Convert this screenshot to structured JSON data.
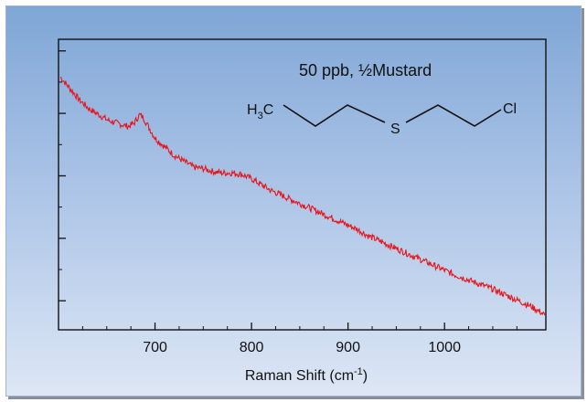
{
  "chart_data": {
    "type": "line",
    "title": "",
    "xlabel": "Raman Shift (cm",
    "xlabel_sup": "-1",
    "xlabel_suffix": ")",
    "ylabel": "",
    "xlim": [
      600,
      1105
    ],
    "ylim": [
      0,
      1
    ],
    "x_ticks": [
      700,
      800,
      900,
      1000
    ],
    "x_tick_labels": [
      "700",
      "800",
      "900",
      "1000"
    ],
    "y_tick_labels_shown": false,
    "grid": false,
    "annotation": "50 ppb, ½Mustard",
    "structure_labels": {
      "h3c_main": "H",
      "h3c_sub": "3",
      "h3c_tail": "C",
      "sulfur": "S",
      "chlorine": "Cl"
    },
    "series": [
      {
        "color": "#e8141b",
        "points": [
          [
            602,
            0.87
          ],
          [
            612,
            0.83
          ],
          [
            622,
            0.79
          ],
          [
            632,
            0.76
          ],
          [
            642,
            0.74
          ],
          [
            652,
            0.72
          ],
          [
            662,
            0.71
          ],
          [
            672,
            0.7
          ],
          [
            678,
            0.71
          ],
          [
            684,
            0.74
          ],
          [
            688,
            0.73
          ],
          [
            693,
            0.7
          ],
          [
            700,
            0.66
          ],
          [
            710,
            0.63
          ],
          [
            720,
            0.6
          ],
          [
            730,
            0.58
          ],
          [
            740,
            0.56
          ],
          [
            750,
            0.555
          ],
          [
            760,
            0.545
          ],
          [
            770,
            0.54
          ],
          [
            780,
            0.54
          ],
          [
            790,
            0.535
          ],
          [
            800,
            0.52
          ],
          [
            810,
            0.5
          ],
          [
            820,
            0.48
          ],
          [
            830,
            0.465
          ],
          [
            840,
            0.45
          ],
          [
            850,
            0.435
          ],
          [
            860,
            0.42
          ],
          [
            870,
            0.405
          ],
          [
            880,
            0.39
          ],
          [
            890,
            0.375
          ],
          [
            900,
            0.36
          ],
          [
            910,
            0.345
          ],
          [
            920,
            0.325
          ],
          [
            930,
            0.31
          ],
          [
            940,
            0.295
          ],
          [
            950,
            0.28
          ],
          [
            960,
            0.265
          ],
          [
            970,
            0.25
          ],
          [
            980,
            0.235
          ],
          [
            990,
            0.22
          ],
          [
            1000,
            0.205
          ],
          [
            1010,
            0.19
          ],
          [
            1020,
            0.178
          ],
          [
            1030,
            0.165
          ],
          [
            1040,
            0.153
          ],
          [
            1050,
            0.14
          ],
          [
            1060,
            0.125
          ],
          [
            1070,
            0.11
          ],
          [
            1080,
            0.095
          ],
          [
            1090,
            0.08
          ],
          [
            1100,
            0.06
          ],
          [
            1104,
            0.05
          ]
        ]
      }
    ]
  }
}
